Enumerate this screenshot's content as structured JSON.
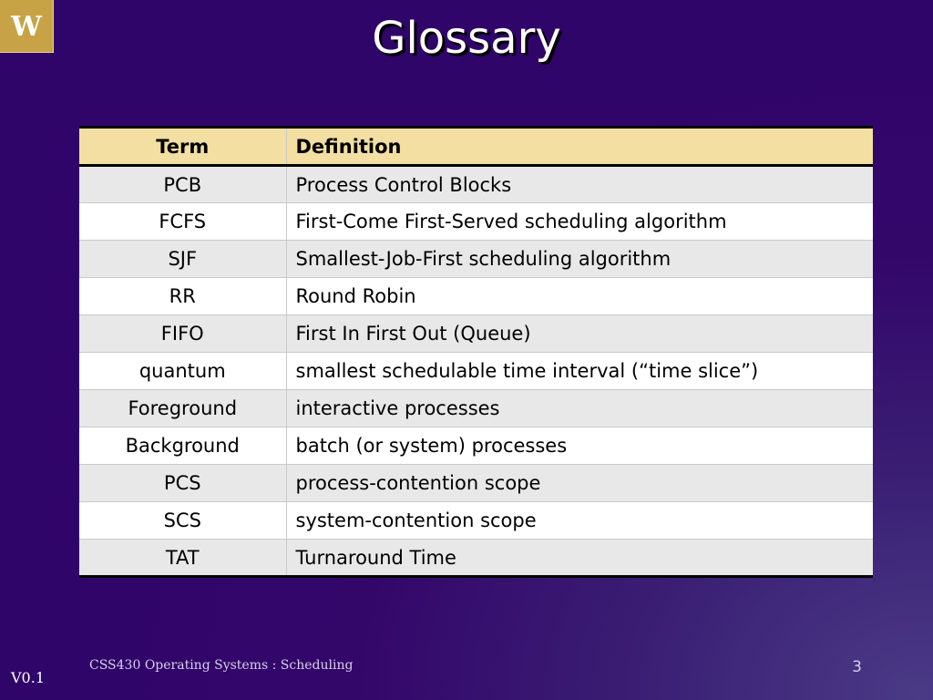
{
  "slide": {
    "title": "Glossary",
    "logo_icon": "uw-w-logo-icon",
    "logo_letter": "W",
    "colors": {
      "background": "#33066a",
      "logo_gold": "#c7a346",
      "header_row": "#f2dfa1",
      "odd_row": "#e8e8e8",
      "even_row": "#ffffff"
    }
  },
  "table": {
    "headers": {
      "term": "Term",
      "definition": "Definition"
    },
    "rows": [
      {
        "term": "PCB",
        "definition": "Process Control Blocks"
      },
      {
        "term": "FCFS",
        "definition": "First-Come First-Served scheduling algorithm"
      },
      {
        "term": "SJF",
        "definition": "Smallest-Job-First scheduling algorithm"
      },
      {
        "term": "RR",
        "definition": "Round Robin"
      },
      {
        "term": "FIFO",
        "definition": "First In First Out (Queue)"
      },
      {
        "term": "quantum",
        "definition": "smallest schedulable time interval (“time slice”)"
      },
      {
        "term": "Foreground",
        "definition": "interactive processes"
      },
      {
        "term": "Background",
        "definition": "batch (or system) processes"
      },
      {
        "term": "PCS",
        "definition": "process-contention scope"
      },
      {
        "term": "SCS",
        "definition": "system-contention scope"
      },
      {
        "term": "TAT",
        "definition": "Turnaround Time"
      }
    ]
  },
  "footer": {
    "course": "CSS430 Operating Systems : Scheduling",
    "version": "V0.1",
    "slide_number": "3"
  }
}
